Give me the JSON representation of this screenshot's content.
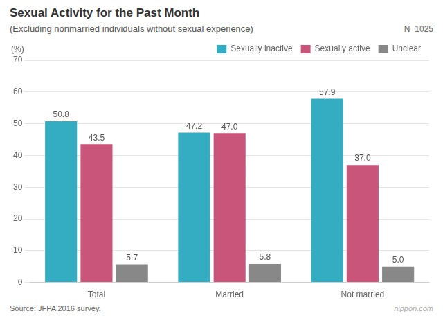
{
  "chart_data": {
    "type": "bar",
    "title": "Sexual Activity for the Past Month",
    "subtitle": "(Excluding nonmarried individuals without sexual experience)",
    "ylabel": "(%)",
    "annotations": [
      "N=1025",
      "Source: JFPA 2016 survey.",
      "nippon.com"
    ],
    "categories": [
      "Total",
      "Married",
      "Not married"
    ],
    "series": [
      {
        "name": "Sexually inactive",
        "color": "#34adc3",
        "values": [
          50.8,
          47.2,
          57.9
        ],
        "value_labels": [
          "50.8",
          "47.2",
          "57.9"
        ]
      },
      {
        "name": "Sexually active",
        "color": "#c9557a",
        "values": [
          43.5,
          47.0,
          37.0
        ],
        "value_labels": [
          "43.5",
          "47.0",
          "37.0"
        ]
      },
      {
        "name": "Unclear",
        "color": "#888888",
        "values": [
          5.7,
          5.8,
          5.0
        ],
        "value_labels": [
          "5.7",
          "5.8",
          "5.0"
        ]
      }
    ],
    "ylim": [
      0,
      70
    ],
    "yticks": [
      0,
      10,
      20,
      30,
      40,
      50,
      60,
      70
    ],
    "grid": "y",
    "legend": "upper right",
    "data_labels": true
  }
}
